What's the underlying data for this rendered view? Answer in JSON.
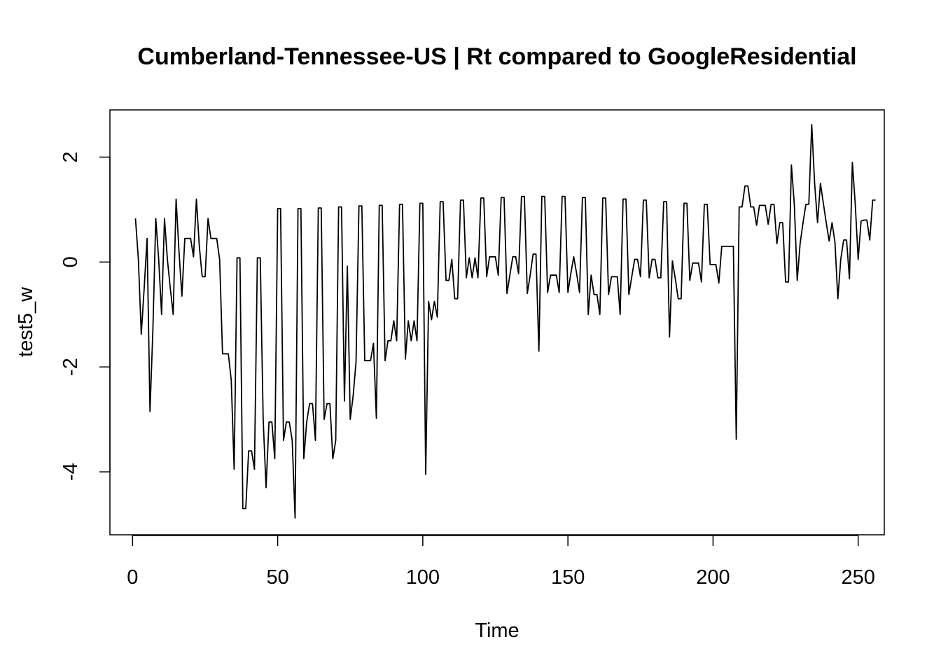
{
  "chart_data": {
    "type": "line",
    "title": "Cumberland-Tennessee-US | Rt compared to GoogleResidential",
    "xlabel": "Time",
    "ylabel": "test5_w",
    "xlim": [
      -7.8,
      259
    ],
    "ylim": [
      -5.2,
      2.9
    ],
    "x_ticks": [
      0,
      50,
      100,
      150,
      200,
      250
    ],
    "y_ticks": [
      -4,
      -2,
      0,
      2
    ],
    "grid": false,
    "legend": "none",
    "line_color": "#000000",
    "series": [
      {
        "x_start": 1,
        "values": [
          0.83,
          0.05,
          -1.38,
          -0.5,
          0.45,
          -2.85,
          -1.3,
          0.83,
          0.05,
          -1.0,
          0.83,
          0.05,
          -0.5,
          -1.0,
          1.2,
          0.2,
          -0.65,
          0.45,
          0.45,
          0.45,
          0.1,
          1.2,
          0.3,
          -0.28,
          -0.28,
          0.83,
          0.45,
          0.45,
          0.45,
          0.05,
          -1.75,
          -1.75,
          -1.75,
          -2.25,
          -3.95,
          0.08,
          0.08,
          -4.7,
          -4.7,
          -3.6,
          -3.6,
          -3.95,
          0.08,
          0.08,
          -3.0,
          -4.3,
          -3.05,
          -3.05,
          -3.75,
          1.02,
          1.02,
          -3.4,
          -3.05,
          -3.05,
          -3.4,
          -4.88,
          1.02,
          1.02,
          -3.75,
          -3.05,
          -2.7,
          -2.7,
          -3.4,
          1.03,
          1.03,
          -3.0,
          -2.7,
          -2.7,
          -3.75,
          -3.4,
          1.05,
          1.05,
          -2.65,
          -0.08,
          -3.0,
          -2.55,
          -1.9,
          1.07,
          1.07,
          -1.88,
          -1.88,
          -1.88,
          -1.55,
          -2.98,
          1.08,
          1.08,
          -1.88,
          -1.5,
          -1.5,
          -1.12,
          -1.5,
          1.1,
          1.1,
          -1.85,
          -1.12,
          -1.5,
          -1.12,
          -1.5,
          1.12,
          1.12,
          -4.05,
          -0.75,
          -1.1,
          -0.75,
          -1.05,
          1.15,
          1.15,
          -0.35,
          -0.35,
          0.05,
          -0.7,
          -0.7,
          1.18,
          1.18,
          -0.3,
          0.08,
          -0.3,
          0.08,
          -0.3,
          1.22,
          1.22,
          -0.28,
          0.1,
          0.1,
          0.1,
          -0.25,
          1.23,
          1.23,
          -0.6,
          -0.25,
          0.1,
          0.1,
          -0.22,
          1.25,
          1.25,
          -0.6,
          -0.25,
          0.15,
          0.15,
          -1.7,
          1.25,
          1.25,
          -0.58,
          -0.25,
          -0.25,
          -0.25,
          -0.58,
          1.25,
          1.25,
          -0.58,
          -0.22,
          0.1,
          -0.22,
          -0.58,
          1.23,
          1.23,
          -1.0,
          -0.25,
          -0.62,
          -0.62,
          -1.0,
          1.22,
          1.22,
          -0.62,
          -0.28,
          -0.28,
          -0.28,
          -1.0,
          1.2,
          1.2,
          -0.62,
          -0.28,
          0.05,
          0.05,
          -0.28,
          1.18,
          1.18,
          -0.3,
          0.05,
          0.05,
          -0.3,
          -0.3,
          1.15,
          1.15,
          -1.43,
          0.02,
          -0.32,
          -0.7,
          -0.7,
          1.12,
          1.12,
          -0.35,
          -0.02,
          -0.02,
          -0.02,
          -0.38,
          1.1,
          1.1,
          -0.05,
          -0.05,
          -0.05,
          -0.4,
          0.3,
          0.3,
          0.3,
          0.3,
          0.3,
          -3.38,
          1.05,
          1.05,
          1.45,
          1.45,
          1.05,
          1.05,
          0.7,
          1.08,
          1.08,
          1.08,
          0.72,
          1.1,
          1.1,
          0.35,
          0.75,
          0.75,
          -0.38,
          -0.38,
          1.85,
          1.1,
          -0.35,
          0.35,
          0.75,
          1.1,
          1.1,
          2.62,
          1.5,
          0.75,
          1.5,
          1.12,
          0.75,
          0.4,
          0.75,
          0.38,
          -0.7,
          0.05,
          0.42,
          0.42,
          -0.32,
          1.9,
          1.1,
          0.05,
          0.78,
          0.8,
          0.8,
          0.42,
          1.18,
          1.18
        ]
      }
    ]
  }
}
